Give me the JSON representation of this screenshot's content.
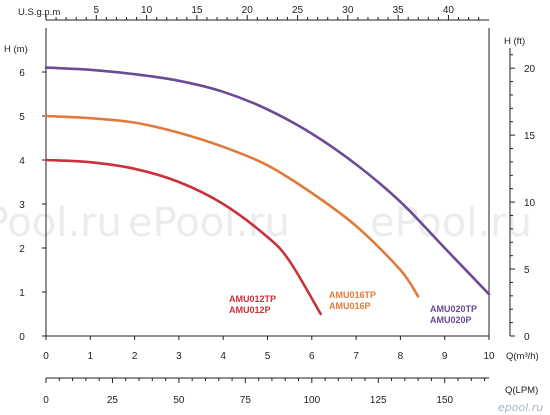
{
  "chart_data": {
    "type": "line",
    "title": "",
    "axes": {
      "left": {
        "label": "H (m)",
        "min": 0,
        "max": 7,
        "ticks": [
          0,
          1,
          2,
          3,
          4,
          5,
          6
        ]
      },
      "right": {
        "label": "H (ft)",
        "min": 0,
        "max": 23,
        "ticks": [
          0,
          5,
          10,
          15,
          20
        ]
      },
      "bottom_primary": {
        "label": "Q(m³/h)",
        "min": 0,
        "max": 10,
        "ticks": [
          0,
          1,
          2,
          3,
          4,
          5,
          6,
          7,
          8,
          9,
          10
        ]
      },
      "top": {
        "label": "U.S.g.p.m",
        "ticks": [
          5,
          10,
          15,
          20,
          25,
          30,
          35,
          40
        ]
      },
      "bottom_secondary": {
        "label": "Q(LPM)",
        "ticks": [
          0,
          25,
          50,
          75,
          100,
          125,
          150
        ]
      }
    },
    "grid": false,
    "series": [
      {
        "labels": [
          "AMU012TP",
          "AMU012P"
        ],
        "color": "#c8323a",
        "x": [
          0,
          1,
          2,
          3,
          4,
          5,
          5.5,
          6.2
        ],
        "y": [
          4.0,
          3.95,
          3.8,
          3.5,
          3.0,
          2.25,
          1.7,
          0.5
        ]
      },
      {
        "labels": [
          "AMU016TP",
          "AMU016P"
        ],
        "color": "#e07b3c",
        "x": [
          0,
          1,
          2,
          3,
          4,
          5,
          6,
          7,
          8,
          8.4
        ],
        "y": [
          5.0,
          4.95,
          4.85,
          4.62,
          4.3,
          3.88,
          3.25,
          2.5,
          1.5,
          0.9
        ]
      },
      {
        "labels": [
          "AMU020TP",
          "AMU020P"
        ],
        "color": "#6b4a96",
        "x": [
          0,
          1,
          2,
          3,
          4,
          5,
          6,
          7,
          8,
          9,
          10
        ],
        "y": [
          6.1,
          6.05,
          5.95,
          5.8,
          5.55,
          5.15,
          4.6,
          3.9,
          3.05,
          2.0,
          0.95
        ]
      }
    ],
    "watermarks": [
      "ePool.ru",
      "ePool.ru",
      "ePool.ru"
    ],
    "brand": "epool.ru"
  }
}
